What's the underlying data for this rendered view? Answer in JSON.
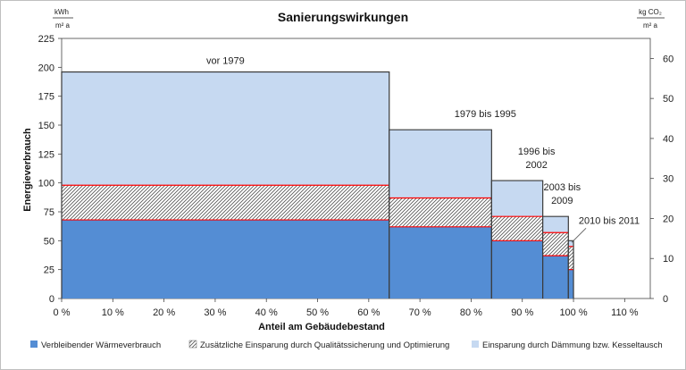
{
  "chart_data": {
    "type": "bar",
    "variant": "variable-width stacked bars (Marimekko)",
    "title": "Sanierungswirkungen",
    "xlabel": "Anteil am Gebäudebestand",
    "ylabel": "Energieverbrauch",
    "y_unit": {
      "numerator": "kWh",
      "denominator": "m² a"
    },
    "y2_unit": {
      "numerator": "kg CO₂",
      "denominator": "m² a"
    },
    "xlim": [
      0,
      115
    ],
    "ylim": [
      0,
      225
    ],
    "y2lim": [
      0,
      65
    ],
    "x_ticks": [
      0,
      10,
      20,
      30,
      40,
      50,
      60,
      70,
      80,
      90,
      100,
      110
    ],
    "x_tick_labels": [
      "0 %",
      "10 %",
      "20 %",
      "30 %",
      "40 %",
      "50 %",
      "60 %",
      "70 %",
      "80 %",
      "90 %",
      "100 %",
      "110 %"
    ],
    "y_ticks": [
      0,
      25,
      50,
      75,
      100,
      125,
      150,
      175,
      200,
      225
    ],
    "y_tick_labels": [
      "0",
      "25",
      "50",
      "75",
      "100",
      "125",
      "150",
      "175",
      "200",
      "225"
    ],
    "y2_ticks": [
      0,
      10,
      20,
      30,
      40,
      50,
      60
    ],
    "y2_tick_labels": [
      "0",
      "10",
      "20",
      "30",
      "40",
      "50",
      "60"
    ],
    "grid": false,
    "legend_position": "bottom",
    "periods": [
      {
        "label": [
          "vor 1979"
        ],
        "x_start": 0,
        "x_end": 64,
        "values": [
          68,
          30,
          98
        ]
      },
      {
        "label": [
          "1979 bis 1995"
        ],
        "x_start": 64,
        "x_end": 84,
        "values": [
          62,
          25,
          59
        ]
      },
      {
        "label": [
          "1996 bis",
          "2002"
        ],
        "x_start": 84,
        "x_end": 94,
        "values": [
          50,
          21,
          31
        ]
      },
      {
        "label": [
          "2003 bis",
          "2009"
        ],
        "x_start": 94,
        "x_end": 99,
        "values": [
          37,
          20,
          14
        ]
      },
      {
        "label": [
          "2010 bis 2011"
        ],
        "x_start": 99,
        "x_end": 100,
        "values": [
          25,
          20,
          5
        ]
      }
    ],
    "series": [
      {
        "name": "Verbleibender Wärmeverbrauch",
        "color": "#548dd4",
        "pattern": "solid"
      },
      {
        "name": "Zusätzliche Einsparung durch Qualitätssicherung und Optimierung",
        "color": "#ffffff",
        "pattern": "hatched"
      },
      {
        "name": "Einsparung durch Dämmung bzw. Kesseltausch",
        "color": "#c6d9f1",
        "pattern": "solid"
      }
    ],
    "series_boundary_color": "#ff0000"
  }
}
